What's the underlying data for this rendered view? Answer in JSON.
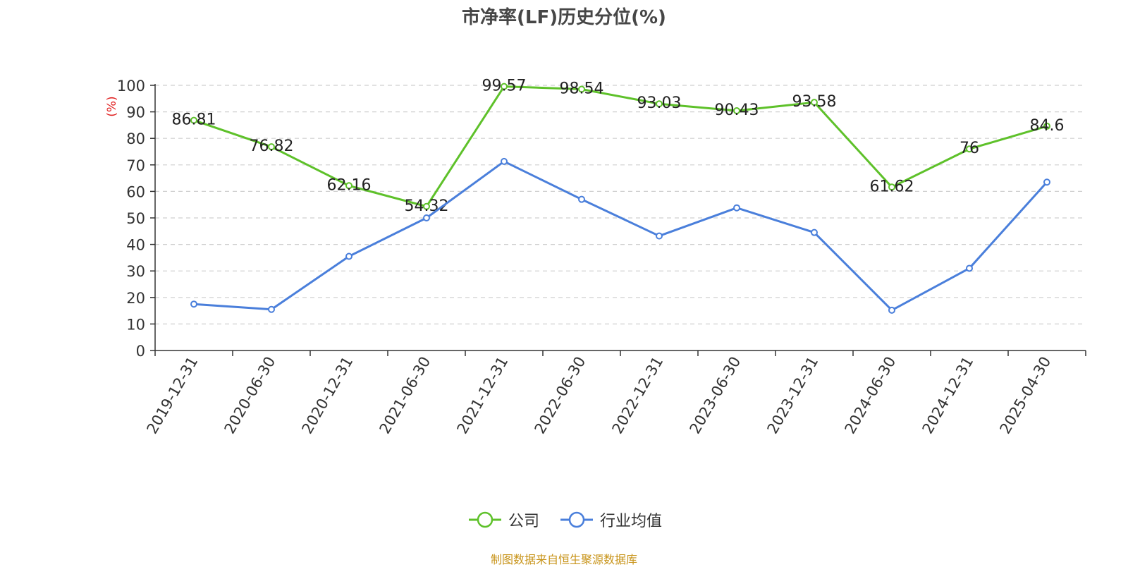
{
  "chart_data": {
    "type": "line",
    "title": "市净率(LF)历史分位(%)",
    "ylabel": "(%)",
    "ylim": [
      0,
      100
    ],
    "yticks": [
      0,
      10,
      20,
      30,
      40,
      50,
      60,
      70,
      80,
      90,
      100
    ],
    "categories": [
      "2019-12-31",
      "2020-06-30",
      "2020-12-31",
      "2021-06-30",
      "2021-12-31",
      "2022-06-30",
      "2022-12-31",
      "2023-06-30",
      "2023-12-31",
      "2024-06-30",
      "2024-12-31",
      "2025-04-30"
    ],
    "series": [
      {
        "name": "公司",
        "color": "#5ec12a",
        "values": [
          86.81,
          76.82,
          62.16,
          54.32,
          99.57,
          98.54,
          93.03,
          90.43,
          93.58,
          61.62,
          76,
          84.6
        ],
        "labels": [
          "86.81",
          "76.82",
          "62.16",
          "54.32",
          "99.57",
          "98.54",
          "93.03",
          "90.43",
          "93.58",
          "61.62",
          "76",
          "84.6"
        ]
      },
      {
        "name": "行业均值",
        "color": "#4a7fdb",
        "values": [
          17.5,
          15.5,
          35.5,
          50,
          71.3,
          57,
          43.2,
          53.8,
          44.5,
          15.2,
          31,
          63.5
        ]
      }
    ],
    "grid": true,
    "legend_position": "bottom"
  },
  "footer": {
    "source": "制图数据来自恒生聚源数据库"
  }
}
